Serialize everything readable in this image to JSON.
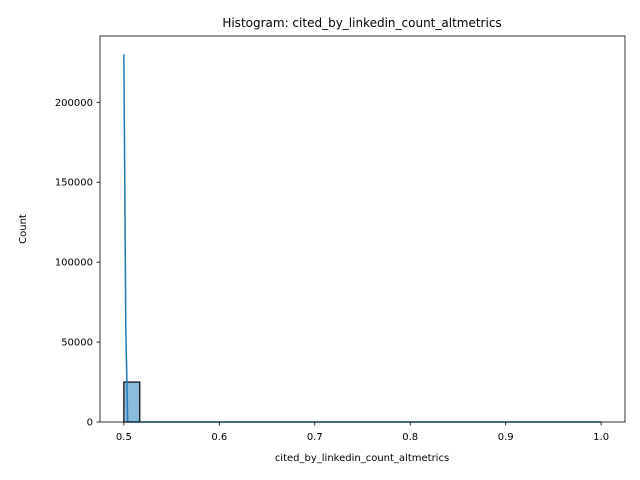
{
  "chart_data": {
    "type": "bar",
    "title": "Histogram: cited_by_linkedin_count_altmetrics",
    "xlabel": "cited_by_linkedin_count_altmetrics",
    "ylabel": "Count",
    "xlim": [
      0.475,
      1.025
    ],
    "ylim": [
      0,
      241500
    ],
    "xticks": [
      0.5,
      0.6,
      0.7,
      0.8,
      0.9,
      1.0
    ],
    "xtick_labels": [
      "0.5",
      "0.6",
      "0.7",
      "0.8",
      "0.9",
      "1.0"
    ],
    "yticks": [
      0,
      50000,
      100000,
      150000,
      200000
    ],
    "ytick_labels": [
      "0",
      "50000",
      "100000",
      "150000",
      "200000"
    ],
    "grid": false,
    "legend": "none",
    "bin_edges": [
      0.5,
      0.51667,
      0.53333,
      0.55,
      0.56667,
      0.58333,
      0.6,
      0.61667,
      0.63333,
      0.65,
      0.66667,
      0.68333,
      0.7,
      0.71667,
      0.73333,
      0.75,
      0.76667,
      0.78333,
      0.8,
      0.81667,
      0.83333,
      0.85,
      0.86667,
      0.88333,
      0.9,
      0.91667,
      0.93333,
      0.95,
      0.96667,
      0.98333,
      1.0
    ],
    "counts": [
      25000,
      0,
      0,
      0,
      0,
      0,
      0,
      0,
      0,
      0,
      0,
      0,
      0,
      0,
      0,
      0,
      0,
      0,
      0,
      0,
      0,
      0,
      0,
      0,
      0,
      0,
      0,
      0,
      0,
      0
    ],
    "kde": {
      "x": [
        0.5,
        0.502,
        0.504,
        1.0
      ],
      "y": [
        230000,
        60000,
        0,
        0
      ]
    },
    "colors": {
      "bar_fill": "#8cbcdc",
      "bar_edge": "#000000",
      "kde_line": "#1f77b4"
    }
  }
}
